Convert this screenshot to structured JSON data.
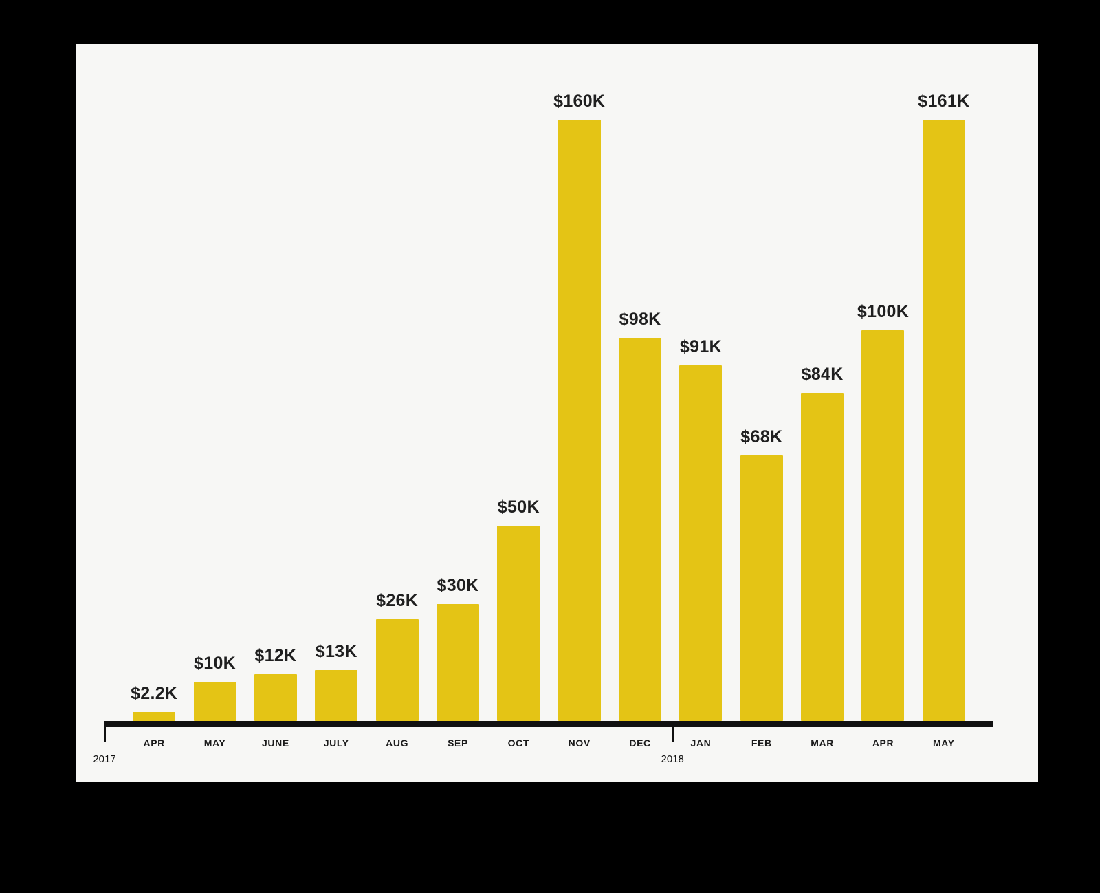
{
  "chart_data": {
    "type": "bar",
    "title": "",
    "categories": [
      "APR",
      "MAY",
      "JUNE",
      "JULY",
      "AUG",
      "SEP",
      "OCT",
      "NOV",
      "DEC",
      "JAN",
      "FEB",
      "MAR",
      "APR",
      "MAY"
    ],
    "values": [
      2.2,
      10,
      12,
      13,
      26,
      30,
      50,
      160,
      98,
      91,
      68,
      84,
      100,
      161
    ],
    "value_labels": [
      "$2.2K",
      "$10K",
      "$12K",
      "$13K",
      "$26K",
      "$30K",
      "$50K",
      "$160K",
      "$98K",
      "$91K",
      "$68K",
      "$84K",
      "$100K",
      "$161K"
    ],
    "ylim": [
      0,
      165
    ],
    "xlabel": "",
    "ylabel": "",
    "grid": false,
    "legend": false,
    "bar_color": "#e4c415",
    "axis_color": "#111111",
    "card_background": "#f7f7f5",
    "page_background": "#000000",
    "year_markers": [
      {
        "label": "2017",
        "at_category_index": 0
      },
      {
        "label": "2018",
        "at_category_index": 9
      }
    ]
  }
}
